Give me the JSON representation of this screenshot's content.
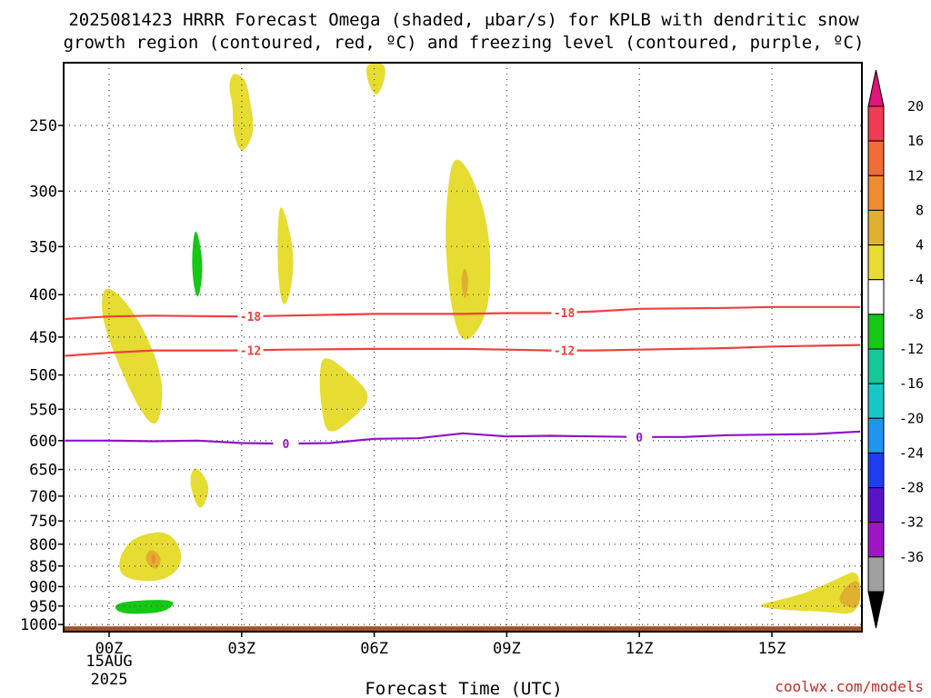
{
  "chart_data": {
    "type": "contour",
    "title_line1": "2025081423 HRRR Forecast Omega (shaded, μbar/s) for KPLB with dendritic snow",
    "title_line2": "growth region (contoured, red, ºC) and freezing level (contoured, purple, ºC)",
    "xlabel": "Forecast Time (UTC)",
    "ylabel": "",
    "x_tick_labels": [
      "00Z",
      "03Z",
      "06Z",
      "09Z",
      "12Z",
      "15Z"
    ],
    "x_tick_hours": [
      0,
      3,
      6,
      9,
      12,
      15
    ],
    "x_date_label": [
      "15AUG",
      "2025"
    ],
    "xlim_hours": [
      -1,
      17
    ],
    "y_scale": "log-pressure",
    "ylim_hPa": [
      1020,
      210
    ],
    "y_tick_labels": [
      "250",
      "300",
      "350",
      "400",
      "450",
      "500",
      "550",
      "600",
      "650",
      "700",
      "750",
      "800",
      "850",
      "900",
      "950",
      "1000"
    ],
    "y_ticks_hPa": [
      250,
      300,
      350,
      400,
      450,
      500,
      550,
      600,
      650,
      700,
      750,
      800,
      850,
      900,
      950,
      1000
    ],
    "grid": true,
    "ground_layer": {
      "color": "#a0522d",
      "from_hPa": 1000,
      "to_hPa": 1020
    },
    "colorbar": {
      "labels": [
        "20",
        "16",
        "12",
        "8",
        "4",
        "-4",
        "-8",
        "-12",
        "-16",
        "-20",
        "-24",
        "-28",
        "-32",
        "-36"
      ],
      "colors": [
        "#f03b53",
        "#f06d36",
        "#f08c30",
        "#e0b030",
        "#e6dc32",
        "#ffffff",
        "#14c814",
        "#14c898",
        "#14c8c8",
        "#1e96f0",
        "#1e3cf0",
        "#5a14c8",
        "#a014c8",
        "#a0a0a0"
      ],
      "top_arrow_color": "#e0147a",
      "bottom_arrow_color": "#000000"
    },
    "contour_lines": [
      {
        "name": "-18",
        "color": "#f04040",
        "points": [
          [
            -1,
            428
          ],
          [
            0,
            425
          ],
          [
            1,
            424
          ],
          [
            2,
            424.5
          ],
          [
            3,
            425
          ],
          [
            4,
            424
          ],
          [
            6,
            422
          ],
          [
            8,
            422
          ],
          [
            9,
            421
          ],
          [
            10,
            421
          ],
          [
            11,
            419
          ],
          [
            12,
            416
          ],
          [
            14,
            415
          ],
          [
            15,
            414
          ],
          [
            17,
            414
          ]
        ],
        "label_at_hours": [
          3.2,
          10.3
        ]
      },
      {
        "name": "-12",
        "color": "#f04040",
        "points": [
          [
            -1,
            474
          ],
          [
            0,
            470
          ],
          [
            1,
            467
          ],
          [
            2,
            467
          ],
          [
            3,
            467
          ],
          [
            4,
            466
          ],
          [
            6,
            465
          ],
          [
            8,
            465
          ],
          [
            9,
            466
          ],
          [
            10,
            467
          ],
          [
            11,
            467
          ],
          [
            12,
            466
          ],
          [
            14,
            464
          ],
          [
            15,
            462
          ],
          [
            17,
            460
          ]
        ],
        "label_at_hours": [
          3.2,
          10.3
        ]
      },
      {
        "name": "0",
        "color": "#8c14c8",
        "points": [
          [
            -1,
            600
          ],
          [
            0,
            600
          ],
          [
            1,
            601
          ],
          [
            2,
            600
          ],
          [
            3,
            604
          ],
          [
            4,
            605
          ],
          [
            5,
            604
          ],
          [
            6,
            597
          ],
          [
            7,
            596
          ],
          [
            8,
            588
          ],
          [
            9,
            593
          ],
          [
            10,
            592
          ],
          [
            11,
            593
          ],
          [
            12,
            594
          ],
          [
            13,
            594
          ],
          [
            14,
            591
          ],
          [
            15,
            590
          ],
          [
            16,
            589
          ],
          [
            17,
            585
          ]
        ],
        "label_at_hours": [
          4.0,
          12.0
        ]
      }
    ],
    "shaded_regions": [
      {
        "name": "omega-4to8-a",
        "value_range": [
          4,
          8
        ],
        "color": "#e6dc32",
        "points": [
          [
            2.8,
            215
          ],
          [
            3.1,
            220
          ],
          [
            3.2,
            235
          ],
          [
            3.3,
            255
          ],
          [
            3.0,
            272
          ],
          [
            2.8,
            255
          ],
          [
            2.8,
            235
          ],
          [
            2.7,
            225
          ]
        ]
      },
      {
        "name": "omega-4to8-b",
        "value_range": [
          4,
          8
        ],
        "color": "#e6dc32",
        "points": [
          [
            5.8,
            205
          ],
          [
            6.25,
            205
          ],
          [
            6.25,
            220
          ],
          [
            6.05,
            232
          ],
          [
            5.85,
            222
          ]
        ]
      },
      {
        "name": "omega-4to8-c",
        "value_range": [
          4,
          8
        ],
        "color": "#e6dc32",
        "points": [
          [
            3.85,
            310
          ],
          [
            4.0,
            320
          ],
          [
            4.2,
            360
          ],
          [
            4.1,
            400
          ],
          [
            3.95,
            415
          ],
          [
            3.85,
            395
          ],
          [
            3.8,
            350
          ]
        ]
      },
      {
        "name": "omega-4to8-d",
        "value_range": [
          4,
          8
        ],
        "color": "#e6dc32",
        "points": [
          [
            7.8,
            270
          ],
          [
            8.2,
            285
          ],
          [
            8.6,
            330
          ],
          [
            8.65,
            400
          ],
          [
            8.4,
            440
          ],
          [
            8.0,
            460
          ],
          [
            7.75,
            420
          ],
          [
            7.6,
            350
          ],
          [
            7.65,
            300
          ]
        ]
      },
      {
        "name": "omega-4to8-e",
        "value_range": [
          4,
          8
        ],
        "color": "#e6dc32",
        "points": [
          [
            -0.1,
            385
          ],
          [
            0.6,
            420
          ],
          [
            1.2,
            495
          ],
          [
            1.2,
            555
          ],
          [
            1.0,
            580
          ],
          [
            0.6,
            540
          ],
          [
            0.1,
            470
          ],
          [
            -0.2,
            420
          ]
        ]
      },
      {
        "name": "omega-4to8-f",
        "value_range": [
          4,
          8
        ],
        "color": "#e6dc32",
        "points": [
          [
            4.85,
            470
          ],
          [
            5.5,
            500
          ],
          [
            5.95,
            530
          ],
          [
            5.6,
            560
          ],
          [
            4.95,
            595
          ],
          [
            4.8,
            550
          ],
          [
            4.75,
            500
          ]
        ]
      },
      {
        "name": "omega-4to8-g",
        "value_range": [
          4,
          8
        ],
        "color": "#e6dc32",
        "points": [
          [
            1.95,
            640
          ],
          [
            2.3,
            680
          ],
          [
            2.15,
            720
          ],
          [
            2.0,
            725
          ],
          [
            1.8,
            670
          ]
        ]
      },
      {
        "name": "omega-4to8-h",
        "value_range": [
          4,
          8
        ],
        "color": "#e6dc32",
        "points": [
          [
            0.7,
            780
          ],
          [
            1.3,
            770
          ],
          [
            1.65,
            810
          ],
          [
            1.6,
            860
          ],
          [
            1.1,
            890
          ],
          [
            0.3,
            880
          ],
          [
            0.2,
            840
          ],
          [
            0.4,
            800
          ]
        ]
      },
      {
        "name": "omega-4to8-i",
        "value_range": [
          4,
          8
        ],
        "color": "#e6dc32",
        "points": [
          [
            14.8,
            943
          ],
          [
            15.7,
            920
          ],
          [
            16.5,
            880
          ],
          [
            17.0,
            855
          ],
          [
            17.0,
            975
          ],
          [
            16.2,
            965
          ],
          [
            15.2,
            960
          ],
          [
            14.7,
            952
          ]
        ]
      },
      {
        "name": "omega-8to12-a",
        "value_range": [
          8,
          12
        ],
        "color": "#e0b030",
        "points": [
          [
            0.95,
            808
          ],
          [
            1.2,
            830
          ],
          [
            1.1,
            860
          ],
          [
            0.9,
            850
          ],
          [
            0.8,
            830
          ]
        ]
      },
      {
        "name": "omega-8to12-b",
        "value_range": [
          8,
          12
        ],
        "color": "#e0b030",
        "points": [
          [
            8.05,
            368
          ],
          [
            8.15,
            385
          ],
          [
            8.05,
            410
          ],
          [
            7.95,
            385
          ]
        ]
      },
      {
        "name": "omega-8to12-c",
        "value_range": [
          8,
          12
        ],
        "color": "#e0b030",
        "points": [
          [
            16.7,
            895
          ],
          [
            17.0,
            880
          ],
          [
            17.0,
            960
          ],
          [
            16.6,
            948
          ],
          [
            16.5,
            930
          ]
        ]
      },
      {
        "name": "omega-12to16-a",
        "value_range": [
          12,
          16
        ],
        "color": "#f08c30",
        "points": [
          [
            0.98,
            820
          ],
          [
            1.08,
            832
          ],
          [
            1.0,
            848
          ],
          [
            0.95,
            832
          ]
        ]
      },
      {
        "name": "omega-neg4to8-a",
        "value_range": [
          -8,
          -4
        ],
        "color": "#14c814",
        "points": [
          [
            1.95,
            325
          ],
          [
            2.15,
            370
          ],
          [
            2.0,
            413
          ],
          [
            1.85,
            370
          ]
        ]
      },
      {
        "name": "omega-neg4to8-b",
        "value_range": [
          -8,
          -4
        ],
        "color": "#14c814",
        "points": [
          [
            0.1,
            945
          ],
          [
            0.6,
            935
          ],
          [
            1.55,
            933
          ],
          [
            1.3,
            965
          ],
          [
            0.7,
            972
          ],
          [
            0.2,
            968
          ]
        ]
      }
    ]
  },
  "credit": "coolwx.com/models"
}
